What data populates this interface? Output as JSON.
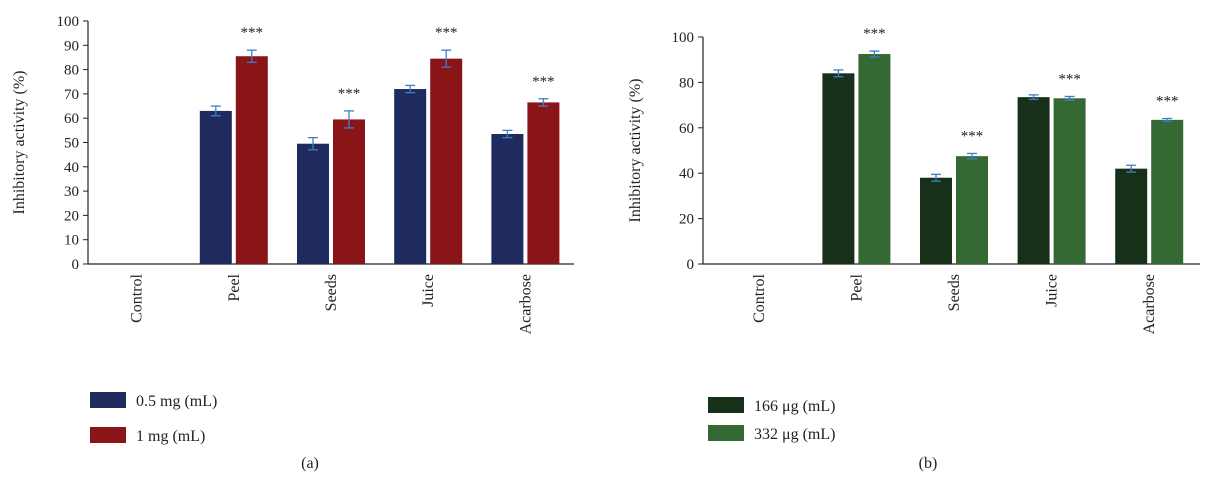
{
  "chart_data": [
    {
      "type": "bar",
      "panel_label": "(a)",
      "categories": [
        "Control",
        "Peel",
        "Seeds",
        "Juice",
        "Acarbose"
      ],
      "ylabel": "Inhibitory activity (%)",
      "xlabel": "",
      "ylim": [
        0,
        100
      ],
      "yticks": [
        0,
        10,
        20,
        30,
        40,
        50,
        60,
        70,
        80,
        90,
        100
      ],
      "series": [
        {
          "name": "0.5 mg (mL)",
          "color": "#1f2a5e",
          "values": [
            0,
            63,
            49.5,
            72,
            53.5
          ],
          "errors": [
            0,
            2,
            2.5,
            1.5,
            1.5
          ]
        },
        {
          "name": "1 mg (mL)",
          "color": "#8a1519",
          "values": [
            0,
            85.5,
            59.5,
            84.5,
            66.5
          ],
          "errors": [
            0,
            2.5,
            3.5,
            3.5,
            1.5
          ]
        }
      ],
      "annotations": [
        "",
        "***",
        "***",
        "***",
        "***"
      ],
      "legend_position": "bottom-left",
      "grid": false
    },
    {
      "type": "bar",
      "panel_label": "(b)",
      "categories": [
        "Control",
        "Peel",
        "Seeds",
        "Juice",
        "Acarbose"
      ],
      "ylabel": "Inhibitory activity (%)",
      "xlabel": "",
      "ylim": [
        0,
        100
      ],
      "yticks": [
        0,
        20,
        40,
        60,
        80,
        100
      ],
      "series": [
        {
          "name": "166 μg (mL)",
          "color": "#16301a",
          "values": [
            0,
            84,
            38,
            73.5,
            42
          ],
          "errors": [
            0,
            1.5,
            1.5,
            1,
            1.5
          ]
        },
        {
          "name": "332 μg (mL)",
          "color": "#356934",
          "values": [
            0,
            92.5,
            47.5,
            73,
            63.5
          ],
          "errors": [
            0,
            1.3,
            1.2,
            0.8,
            0.6
          ]
        }
      ],
      "annotations": [
        "",
        "***",
        "***",
        "***",
        "***"
      ],
      "legend_position": "bottom-left",
      "grid": false
    }
  ]
}
